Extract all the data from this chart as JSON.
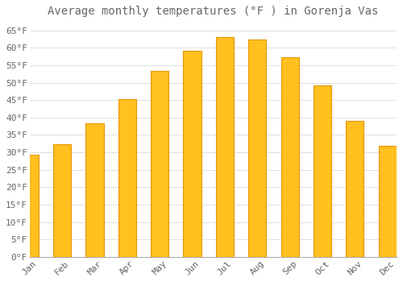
{
  "title": "Average monthly temperatures (°F ) in Gorenja Vas",
  "months": [
    "Jan",
    "Feb",
    "Mar",
    "Apr",
    "May",
    "Jun",
    "Jul",
    "Aug",
    "Sep",
    "Oct",
    "Nov",
    "Dec"
  ],
  "values": [
    29.3,
    32.3,
    38.3,
    45.3,
    53.4,
    59.2,
    63.0,
    62.4,
    57.2,
    49.1,
    39.0,
    31.8
  ],
  "bar_color": "#FFC020",
  "bar_edge_color": "#E8960A",
  "background_color": "#FFFFFF",
  "grid_color": "#E0E0E0",
  "text_color": "#666666",
  "ylim": [
    0,
    67
  ],
  "ytick_values": [
    0,
    5,
    10,
    15,
    20,
    25,
    30,
    35,
    40,
    45,
    50,
    55,
    60,
    65
  ],
  "title_fontsize": 10,
  "tick_fontsize": 8
}
